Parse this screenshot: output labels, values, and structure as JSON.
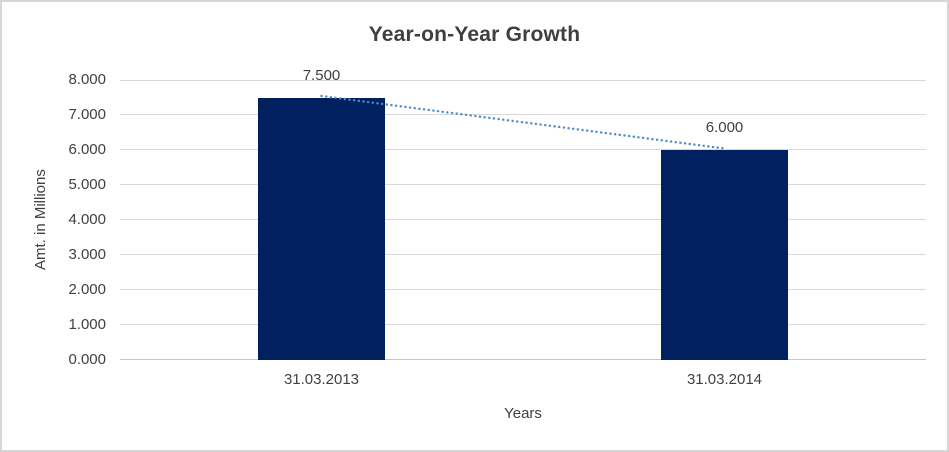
{
  "window": {
    "background": "#ffffff",
    "border_color": "#d6d6d6"
  },
  "chart_data": {
    "type": "bar",
    "title": "Year-on-Year Growth",
    "xlabel": "Years",
    "ylabel": "Amt. in Millions",
    "categories": [
      "31.03.2013",
      "31.03.2014"
    ],
    "series": [
      {
        "values": [
          7.5,
          6.0
        ],
        "labels": [
          "7.500",
          "6.000"
        ],
        "color": "#002060"
      }
    ],
    "ylim": [
      0,
      8
    ],
    "yticks": [
      {
        "value": 0,
        "label": "0.000"
      },
      {
        "value": 1,
        "label": "1.000"
      },
      {
        "value": 2,
        "label": "2.000"
      },
      {
        "value": 3,
        "label": "3.000"
      },
      {
        "value": 4,
        "label": "4.000"
      },
      {
        "value": 5,
        "label": "5.000"
      },
      {
        "value": 6,
        "label": "6.000"
      },
      {
        "value": 7,
        "label": "7.000"
      },
      {
        "value": 8,
        "label": "8.000"
      }
    ],
    "grid": true,
    "gridline_color": "#d9d9d9",
    "axis_line_color": "#c6c6c6",
    "text_color": "#404040",
    "title_color": "#3f3f3f",
    "legend": "none",
    "trendline": {
      "style": "dotted",
      "color": "#4e8ac8",
      "from": {
        "category_index": 0,
        "value": 7.5
      },
      "to": {
        "category_index": 1,
        "value": 6.0
      }
    }
  }
}
